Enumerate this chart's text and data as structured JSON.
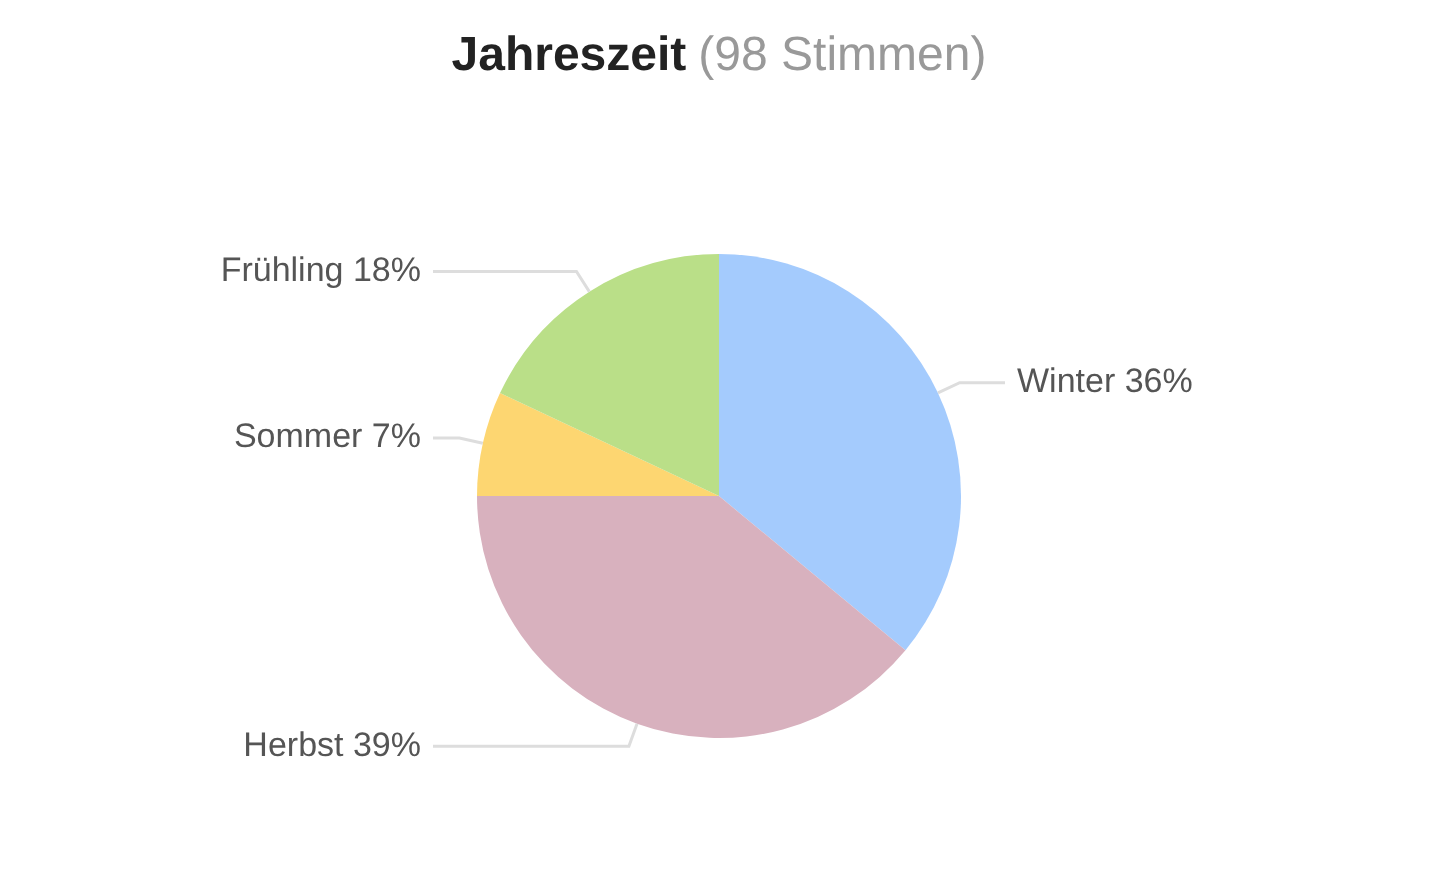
{
  "chart_data": {
    "type": "pie",
    "title": "Jahreszeit",
    "subtitle": "(98 Stimmen)",
    "categories": [
      "Winter",
      "Herbst",
      "Sommer",
      "Frühling"
    ],
    "values": [
      36,
      39,
      7,
      18
    ],
    "colors": [
      "#a4cbfd",
      "#d8b1be",
      "#fdd671",
      "#badf88"
    ],
    "value_labels": [
      "36%",
      "39%",
      "7%",
      "18%"
    ],
    "legend": false
  }
}
